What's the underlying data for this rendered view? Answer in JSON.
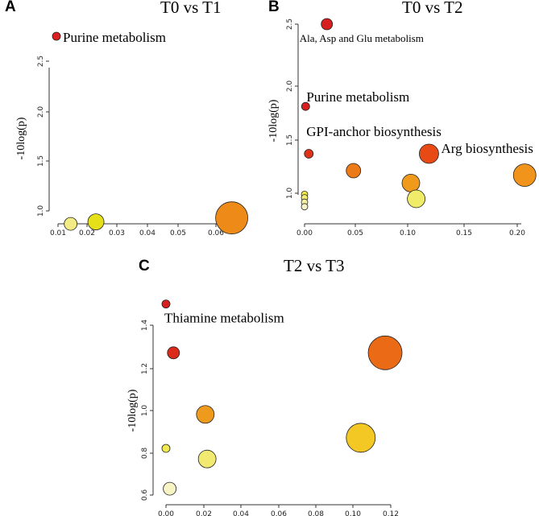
{
  "chart_data": [
    {
      "type": "scatter",
      "panel_label": "A",
      "title": "T0 vs T1",
      "xlabel": "",
      "ylabel": "-10log(p)",
      "xlim": [
        0.008,
        0.068
      ],
      "ylim": [
        0.83,
        2.75
      ],
      "xticks": [
        "0.01",
        "0.02",
        "0.03",
        "0.04",
        "0.05",
        "0.06"
      ],
      "yticks": [
        "1.0",
        "1.5",
        "2.0",
        "2.5"
      ],
      "points": [
        {
          "x": 0.0095,
          "y": 2.75,
          "size": 5,
          "color": "#dd1f1f",
          "label": "Purine metabolism"
        },
        {
          "x": 0.014,
          "y": 0.87,
          "size": 8,
          "color": "#f3ec85",
          "label": ""
        },
        {
          "x": 0.022,
          "y": 0.89,
          "size": 10,
          "color": "#e6e018",
          "label": ""
        },
        {
          "x": 0.065,
          "y": 0.93,
          "size": 20,
          "color": "#ee8a18",
          "label": ""
        }
      ]
    },
    {
      "type": "scatter",
      "panel_label": "B",
      "title": "T0 vs T2",
      "xlabel": "",
      "ylabel": "-10log(p)",
      "xlim": [
        0.0,
        0.21
      ],
      "ylim": [
        0.85,
        2.55
      ],
      "xticks": [
        "0.00",
        "0.05",
        "0.10",
        "0.15",
        "0.20"
      ],
      "yticks": [
        "1.0",
        "1.5",
        "2.0",
        "2.5"
      ],
      "points": [
        {
          "x": 0.021,
          "y": 2.5,
          "size": 7,
          "color": "#d81f1f",
          "label": "Ala, Asp and Glu metabolism"
        },
        {
          "x": 0.001,
          "y": 1.77,
          "size": 5,
          "color": "#d81f1f",
          "label": "Purine metabolism"
        },
        {
          "x": 0.004,
          "y": 1.35,
          "size": 5.5,
          "color": "#de3218",
          "label": "GPI-anchor biosynthesis"
        },
        {
          "x": 0.117,
          "y": 1.35,
          "size": 12,
          "color": "#e84a16",
          "label": "Arg biosynthesis"
        },
        {
          "x": 0.046,
          "y": 1.2,
          "size": 9,
          "color": "#ec7a16",
          "label": ""
        },
        {
          "x": 0.1,
          "y": 1.09,
          "size": 11,
          "color": "#f09a1c",
          "label": ""
        },
        {
          "x": 0.207,
          "y": 1.16,
          "size": 14,
          "color": "#f0941c",
          "label": ""
        },
        {
          "x": 0.105,
          "y": 0.95,
          "size": 11,
          "color": "#f0ec6a",
          "label": ""
        },
        {
          "x": 0.0,
          "y": 0.99,
          "size": 4,
          "color": "#f1e84a",
          "label": ""
        },
        {
          "x": 0.0,
          "y": 0.96,
          "size": 4,
          "color": "#f3ea70",
          "label": ""
        },
        {
          "x": 0.0,
          "y": 0.92,
          "size": 4,
          "color": "#f6f0a0",
          "label": ""
        },
        {
          "x": 0.0,
          "y": 0.88,
          "size": 4,
          "color": "#f8f4c6",
          "label": ""
        }
      ]
    },
    {
      "type": "scatter",
      "panel_label": "C",
      "title": "T2 vs T3",
      "xlabel": "",
      "ylabel": "-10log(p)",
      "xlim": [
        -0.001,
        0.12
      ],
      "ylim": [
        0.6,
        1.5
      ],
      "xticks": [
        "0.00",
        "0.02",
        "0.04",
        "0.06",
        "0.08",
        "0.10",
        "0.12"
      ],
      "yticks": [
        "0.6",
        "0.8",
        "1.0",
        "1.2",
        "1.4"
      ],
      "points": [
        {
          "x": 0.0,
          "y": 1.5,
          "size": 5,
          "color": "#d81f1f",
          "label": "Thiamine metabolism"
        },
        {
          "x": 0.004,
          "y": 1.27,
          "size": 7.5,
          "color": "#dc2a1a",
          "label": ""
        },
        {
          "x": 0.117,
          "y": 1.27,
          "size": 21,
          "color": "#ea6a16",
          "label": ""
        },
        {
          "x": 0.021,
          "y": 0.98,
          "size": 11,
          "color": "#ee9a1c",
          "label": ""
        },
        {
          "x": 0.0,
          "y": 0.82,
          "size": 5,
          "color": "#f0ea50",
          "label": ""
        },
        {
          "x": 0.022,
          "y": 0.77,
          "size": 11,
          "color": "#f2ea70",
          "label": ""
        },
        {
          "x": 0.104,
          "y": 0.87,
          "size": 18,
          "color": "#f3c824",
          "label": ""
        },
        {
          "x": 0.002,
          "y": 0.63,
          "size": 8,
          "color": "#f8f4c6",
          "label": ""
        }
      ]
    }
  ]
}
